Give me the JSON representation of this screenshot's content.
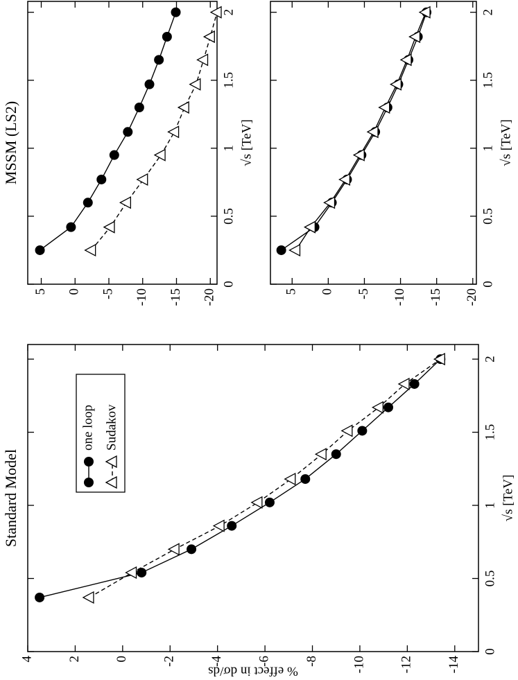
{
  "chart_data": [
    {
      "type": "line",
      "title": "Standard Model",
      "x_label": "√s  [TeV]",
      "y_label": "% effect in dσ/ds",
      "x": [
        0.37,
        0.54,
        0.7,
        0.86,
        1.02,
        1.18,
        1.35,
        1.51,
        1.67,
        1.83,
        2.0
      ],
      "series": [
        {
          "name": "one loop",
          "color": "#000000",
          "marker": "circle",
          "linestyle": "solid",
          "values": [
            3.5,
            -0.8,
            -2.9,
            -4.6,
            -6.2,
            -7.7,
            -9.0,
            -10.1,
            -11.2,
            -12.3,
            -13.4
          ]
        },
        {
          "name": "Sudakov",
          "color": "#000000",
          "marker": "triangle",
          "linestyle": "dashed",
          "values": [
            1.4,
            -0.4,
            -2.2,
            -4.1,
            -5.7,
            -7.1,
            -8.4,
            -9.5,
            -10.8,
            -11.9,
            -13.4
          ]
        }
      ],
      "xlim": [
        0,
        2.1
      ],
      "ylim": [
        -15,
        4
      ],
      "xticks": [
        0,
        0.5,
        1,
        1.5,
        2
      ],
      "yticks": [
        4,
        2,
        0,
        -2,
        -4,
        -6,
        -8,
        -10,
        -12,
        -14
      ],
      "legend": "upper right"
    },
    {
      "type": "line",
      "title": "MSSM (LS2)",
      "x_label": "√s  [TeV]",
      "x": [
        0.25,
        0.42,
        0.6,
        0.77,
        0.95,
        1.12,
        1.3,
        1.47,
        1.65,
        1.82,
        2.0
      ],
      "series": [
        {
          "color": "#000000",
          "marker": "circle",
          "linestyle": "solid",
          "values": [
            5.2,
            0.6,
            -1.9,
            -3.9,
            -5.8,
            -7.8,
            -9.5,
            -11.0,
            -12.4,
            -13.6,
            -14.9
          ]
        },
        {
          "color": "#000000",
          "marker": "triangle",
          "linestyle": "dashed",
          "values": [
            -2.4,
            -5.2,
            -7.6,
            -10.1,
            -12.7,
            -14.7,
            -16.2,
            -17.9,
            -19.0,
            -20.0,
            -21.0
          ]
        }
      ],
      "xlim": [
        0,
        2.08
      ],
      "ylim": [
        -21,
        7
      ],
      "xticks": [
        0,
        0.5,
        1,
        1.5,
        2
      ],
      "yticks": [
        5,
        0,
        -5,
        -10,
        -15,
        -20
      ]
    },
    {
      "type": "line",
      "x_label": "√s  [TeV]",
      "x": [
        0.25,
        0.42,
        0.6,
        0.77,
        0.95,
        1.12,
        1.3,
        1.47,
        1.65,
        1.82,
        2.0
      ],
      "series": [
        {
          "color": "#000000",
          "marker": "circle",
          "linestyle": "solid",
          "values": [
            6.5,
            1.9,
            -0.5,
            -2.6,
            -4.6,
            -6.5,
            -8.2,
            -9.7,
            -11.1,
            -12.4,
            -13.6
          ]
        },
        {
          "color": "#000000",
          "marker": "triangle",
          "linestyle": "solid",
          "values": [
            4.5,
            2.4,
            -0.3,
            -2.4,
            -4.4,
            -6.3,
            -7.9,
            -9.5,
            -10.9,
            -12.1,
            -13.5
          ]
        }
      ],
      "xlim": [
        0,
        2.08
      ],
      "ylim": [
        -20.5,
        8
      ],
      "xticks": [
        0,
        0.5,
        1,
        1.5,
        2
      ],
      "yticks": [
        5,
        0,
        -5,
        -10,
        -15,
        -20
      ]
    }
  ]
}
